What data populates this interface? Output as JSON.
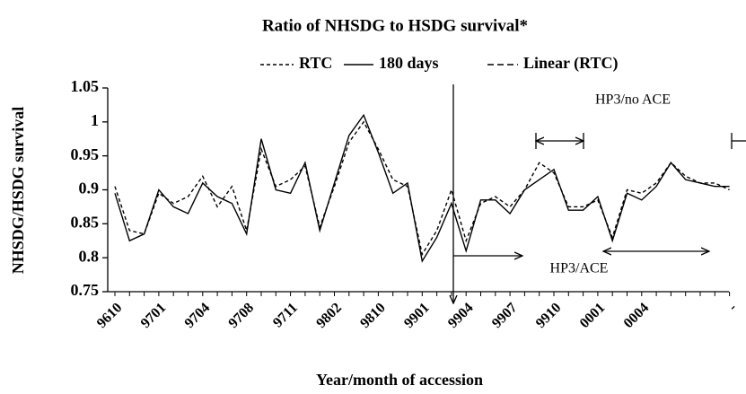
{
  "chart_data": {
    "type": "line",
    "title": "Ratio of NHSDG to HSDG survival*",
    "x_label": "Year/month of accession",
    "y_label": "NHSDG/HSDG survival",
    "categories": [
      "9610",
      null,
      null,
      "9701",
      null,
      null,
      "9704",
      null,
      null,
      "9708",
      null,
      null,
      "9711",
      null,
      null,
      "9802",
      null,
      null,
      "9810",
      null,
      null,
      "9901",
      null,
      null,
      "9904",
      null,
      null,
      "9907",
      null,
      null,
      "9910",
      null,
      null,
      "0001",
      null,
      null,
      "0004",
      null,
      null,
      null,
      null,
      null,
      "-"
    ],
    "series": [
      {
        "name": "RTC",
        "color": "#000000",
        "dash": "4,3",
        "values": [
          0.905,
          0.84,
          0.835,
          0.895,
          0.88,
          0.89,
          0.92,
          0.875,
          0.905,
          0.84,
          0.96,
          0.905,
          0.915,
          0.935,
          0.845,
          0.905,
          0.97,
          1.0,
          0.96,
          0.915,
          0.905,
          0.805,
          0.84,
          0.9,
          0.825,
          0.88,
          0.89,
          0.875,
          0.9,
          0.94,
          0.925,
          0.875,
          0.875,
          0.885,
          0.83,
          0.9,
          0.895,
          0.91,
          0.94,
          0.92,
          0.91,
          0.91,
          0.9
        ]
      },
      {
        "name": "180 days",
        "color": "#000000",
        "dash": "none",
        "values": [
          0.895,
          0.825,
          0.835,
          0.9,
          0.875,
          0.865,
          0.91,
          0.89,
          0.88,
          0.835,
          0.975,
          0.9,
          0.895,
          0.94,
          0.84,
          0.91,
          0.98,
          1.01,
          0.955,
          0.895,
          0.91,
          0.795,
          0.83,
          0.88,
          0.81,
          0.885,
          0.885,
          0.865,
          0.9,
          0.915,
          0.93,
          0.87,
          0.87,
          0.89,
          0.825,
          0.895,
          0.885,
          0.905,
          0.94,
          0.915,
          0.91,
          0.905,
          0.905
        ]
      },
      {
        "name": "Linear (RTC)",
        "color": "#000000",
        "dash": "7,4",
        "values": [
          0.892,
          null,
          null,
          null,
          null,
          null,
          null,
          null,
          null,
          null,
          null,
          null,
          null,
          null,
          null,
          null,
          null,
          null,
          null,
          null,
          null,
          null,
          null,
          null,
          null,
          null,
          null,
          null,
          null,
          null,
          null,
          null,
          null,
          null,
          null,
          null,
          null,
          null,
          null,
          null,
          null,
          null,
          0.897
        ]
      }
    ],
    "annotations": [
      "HP3/no ACE",
      "HP3/ACE"
    ],
    "ylim": [
      0.75,
      1.05
    ],
    "yticks": [
      0.75,
      0.8,
      0.85,
      0.9,
      0.95,
      1,
      1.05
    ]
  }
}
